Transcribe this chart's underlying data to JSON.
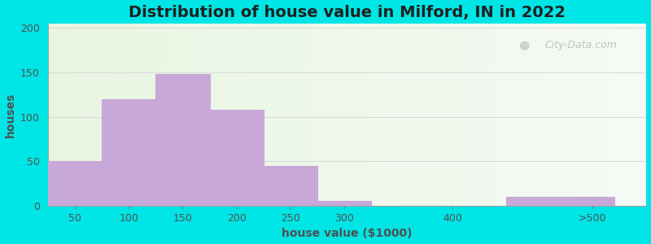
{
  "title": "Distribution of house value in Milford, IN in 2022",
  "xlabel": "house value ($1000)",
  "ylabel": "houses",
  "bar_values": [
    50,
    120,
    148,
    108,
    45,
    5,
    0,
    10
  ],
  "bar_lefts": [
    25,
    75,
    125,
    175,
    225,
    275,
    350,
    450
  ],
  "bar_widths": [
    50,
    50,
    50,
    50,
    50,
    50,
    50,
    100
  ],
  "xtick_positions": [
    50,
    100,
    150,
    200,
    250,
    300,
    400
  ],
  "xtick_labels": [
    "50",
    "100",
    "150",
    "200",
    "250",
    "300",
    "400"
  ],
  "xtick_extra_pos": 530,
  "xtick_extra_label": ">500",
  "bar_color": "#c8a8d8",
  "bar_edge_color": "#b898c8",
  "yticks": [
    0,
    50,
    100,
    150,
    200
  ],
  "ylim": [
    0,
    205
  ],
  "xlim": [
    25,
    580
  ],
  "title_fontsize": 14,
  "label_fontsize": 10,
  "tick_fontsize": 9,
  "background_outer": "#00e5e5",
  "watermark_text": "City-Data.com",
  "watermark_color": "#b0bdb0"
}
